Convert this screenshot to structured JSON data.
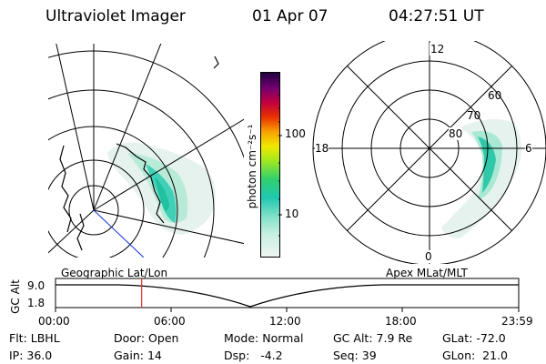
{
  "header": {
    "instrument": "Ultraviolet Imager",
    "date": "01 Apr 07",
    "time": "04:27:51 UT"
  },
  "colorbar": {
    "label": "photon cm⁻²s⁻¹",
    "ticks": [
      "100",
      "10"
    ],
    "ramp_colors": [
      "#e8f4f0",
      "#90e0c8",
      "#20c8b0",
      "#30d070",
      "#a0e820",
      "#f0e800",
      "#f8a000",
      "#e83000",
      "#c00040",
      "#700070",
      "#200040"
    ]
  },
  "polar_plot": {
    "clock_labels": [
      "12",
      "18",
      "6",
      "0"
    ],
    "lat_labels": [
      "60",
      "70",
      "80"
    ]
  },
  "timeline": {
    "left_label": "Geographic Lat/Lon",
    "right_label": "Apex MLat/MLT",
    "y_axis_title": "GC Alt",
    "y_ticks": [
      "9.0",
      "1.8"
    ],
    "x_ticks": [
      "00:00",
      "06:00",
      "12:00",
      "18:00",
      "23:59"
    ],
    "current_time_fraction": 0.186
  },
  "status": {
    "row1": [
      {
        "key": "Flt:",
        "value": "LBHL"
      },
      {
        "key": "Door:",
        "value": "Open"
      },
      {
        "key": "Mode:",
        "value": "Normal"
      },
      {
        "key": "GC Alt:",
        "value": "7.9 Re"
      },
      {
        "key": "GLat:",
        "value": "-72.0"
      }
    ],
    "row2": [
      {
        "key": "IP:",
        "value": "36.0"
      },
      {
        "key": "Gain:",
        "value": "14"
      },
      {
        "key": "Dsp:",
        "value": "-4.2"
      },
      {
        "key": "Seq:",
        "value": "39"
      },
      {
        "key": "GLon:",
        "value": "21.0"
      }
    ]
  }
}
